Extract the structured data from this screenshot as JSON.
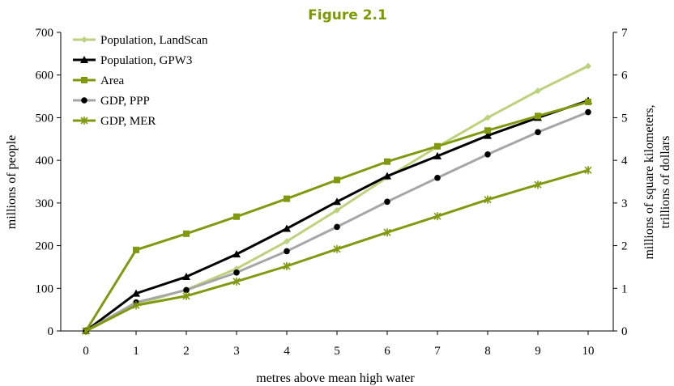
{
  "figure_title": "Figure 2.1",
  "colors": {
    "title": "#7a9a01",
    "population_landscan": "#bcd27c",
    "population_gpw3": "#000000",
    "area": "#7f9a0f",
    "gdp_ppp": "#a6a6a6",
    "gdp_ppp_marker": "#000000",
    "gdp_mer": "#7f9a0f"
  },
  "chart_data": {
    "type": "line",
    "xlabel": "metres above mean high water",
    "ylabel_left": "millions of people",
    "ylabel_right": "millions of square kilometers, trillions of dollars",
    "ylabel_right_lines": [
      "millions of square kilometers,",
      "trillions of dollars"
    ],
    "x": [
      0,
      1,
      2,
      3,
      4,
      5,
      6,
      7,
      8,
      9,
      10
    ],
    "x_tick_labels": [
      "0",
      "1",
      "2",
      "3",
      "4",
      "5",
      "6",
      "7",
      "8",
      "9",
      "10"
    ],
    "ylim_left": [
      0,
      700
    ],
    "y_ticks_left": [
      "0",
      "100",
      "200",
      "300",
      "400",
      "500",
      "600",
      "700"
    ],
    "ylim_right": [
      0,
      7
    ],
    "y_ticks_right": [
      "0",
      "1",
      "2",
      "3",
      "4",
      "5",
      "6",
      "7"
    ],
    "grid": false,
    "legend_position": "top-left",
    "series": [
      {
        "name": "Population, LandScan",
        "axis": "left",
        "marker": "diamond",
        "color_key": "population_landscan",
        "values": [
          0,
          62,
          97,
          146,
          210,
          283,
          360,
          432,
          500,
          563,
          621
        ]
      },
      {
        "name": "Population, GPW3",
        "axis": "left",
        "marker": "triangle",
        "color_key": "population_gpw3",
        "values": [
          0,
          88,
          127,
          180,
          240,
          303,
          363,
          410,
          458,
          500,
          540
        ]
      },
      {
        "name": "Area",
        "axis": "right",
        "marker": "square",
        "color_key": "area",
        "values": [
          0,
          1.9,
          2.28,
          2.68,
          3.1,
          3.54,
          3.97,
          4.33,
          4.7,
          5.04,
          5.37
        ]
      },
      {
        "name": "GDP, PPP",
        "axis": "right",
        "marker": "circle",
        "color_key": "gdp_ppp",
        "values": [
          0,
          0.67,
          0.96,
          1.37,
          1.87,
          2.44,
          3.03,
          3.59,
          4.14,
          4.66,
          5.13
        ]
      },
      {
        "name": "GDP, MER",
        "axis": "right",
        "marker": "asterisk",
        "color_key": "gdp_mer",
        "values": [
          0,
          0.6,
          0.82,
          1.16,
          1.52,
          1.92,
          2.31,
          2.69,
          3.08,
          3.43,
          3.77
        ]
      }
    ]
  }
}
